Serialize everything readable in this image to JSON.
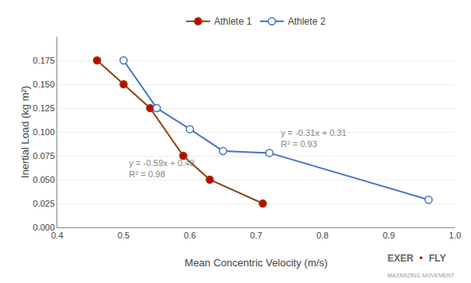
{
  "chart_data": {
    "type": "line",
    "xlabel": "Mean Concentric Velocity (m/s)",
    "ylabel": "Inertial Load (kg m²)",
    "series": [
      {
        "name": "Athlete 1",
        "color": "#8B4513",
        "marker": "circle",
        "colors": [
          "#CC0000",
          "#CC0000",
          "#CC0000",
          "#CC0000",
          "#CC0000",
          "#CC0000"
        ],
        "x": [
          0.46,
          0.5,
          0.54,
          0.59,
          0.63,
          0.71
        ],
        "values": [
          0.175,
          0.15,
          0.125,
          0.075,
          0.05,
          0.025
        ]
      },
      {
        "name": "Athlete 2",
        "color": "#4472C4",
        "marker": "circle",
        "colors": [
          "#FFFFFF",
          "#FFFFFF",
          "#FFFFFF",
          "#FFFFFF",
          "#FFFFFF",
          "#FFFFFF"
        ],
        "x": [
          0.5,
          0.55,
          0.6,
          0.65,
          0.72,
          0.96
        ],
        "values": [
          0.175,
          0.125,
          0.103,
          0.08,
          0.078,
          0.029
        ]
      }
    ],
    "annotations": [
      "y = -0.59x + 0.43\nR² = 0.98",
      "y = -0.31x + 0.31\nR² = 0.93",
      "EXER",
      "•",
      "FLY",
      "MAXIMIZING MOVEMENT"
    ],
    "xlim": [
      0.4,
      1.0
    ],
    "ylim": [
      0,
      0.2
    ],
    "xticks": [
      0.4,
      0.5,
      0.6,
      0.7,
      0.8,
      0.9,
      {
        "value": 1.0,
        "label": "1.0"
      }
    ],
    "yticks": [
      {
        "value": 0,
        "label": "0.000"
      },
      0.025,
      {
        "value": 0.05,
        "label": "0.050"
      },
      0.075,
      {
        "value": 0.1,
        "label": "0.100"
      },
      0.125,
      {
        "value": 0.15,
        "label": "0.150"
      },
      0.175
    ],
    "grid": "y",
    "legend": "top"
  }
}
